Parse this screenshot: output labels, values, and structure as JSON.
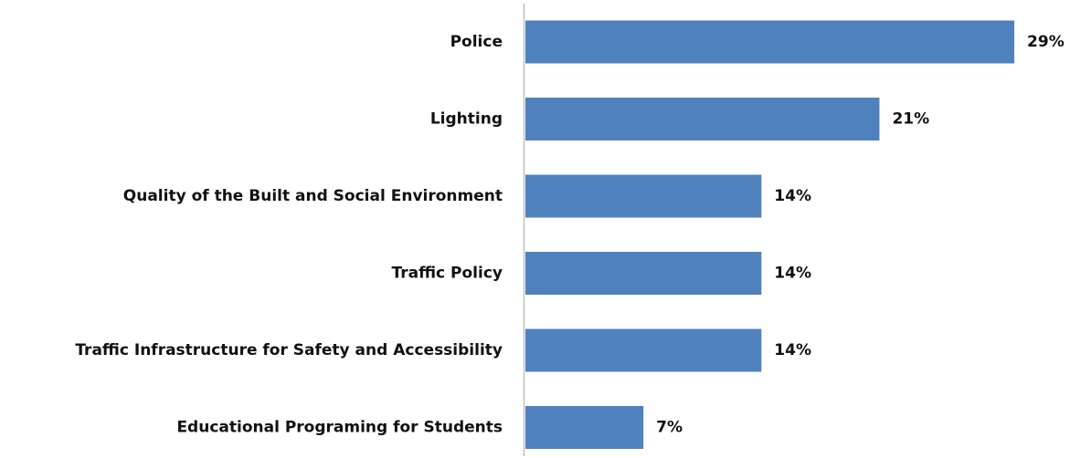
{
  "chart_data": {
    "type": "bar",
    "orientation": "horizontal",
    "categories": [
      "Police",
      "Lighting",
      "Quality of the Built and Social Environment",
      "Traffic Policy",
      "Traffic Infrastructure for Safety and Accessibility",
      "Educational Programing for Students"
    ],
    "values": [
      29,
      21,
      14,
      14,
      14,
      7
    ],
    "value_labels": [
      "29%",
      "21%",
      "14%",
      "14%",
      "14%",
      "7%"
    ],
    "unit": "%",
    "title": "",
    "xlabel": "",
    "ylabel": "",
    "xlim": [
      0,
      30
    ],
    "grid": false,
    "legend": "none",
    "bar_color": "#4f81bd",
    "axis_color": "#bfbfbf"
  }
}
